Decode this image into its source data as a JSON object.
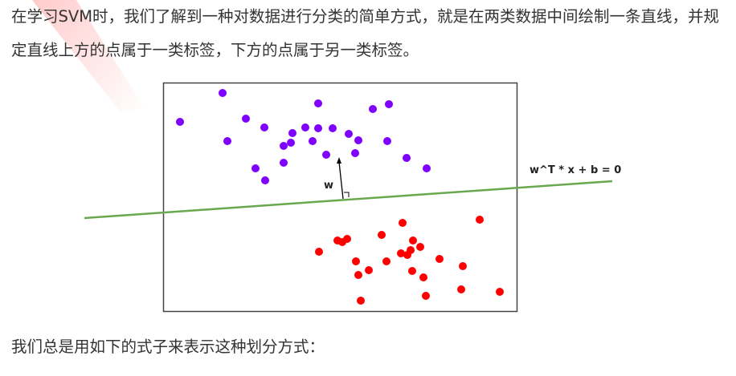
{
  "paragraphs": [
    "在学习SVM时，我们了解到一种对数据进行分类的简单方式，就是在两类数据中间绘制一条直线，并规定直线上方的点属于一类标签，下方的点属于另一类标签。",
    "我们总是用如下的式子来表示这种划分方式："
  ],
  "figure": {
    "line_label": "w^T * x + b = 0",
    "vector_label": "w"
  }
}
